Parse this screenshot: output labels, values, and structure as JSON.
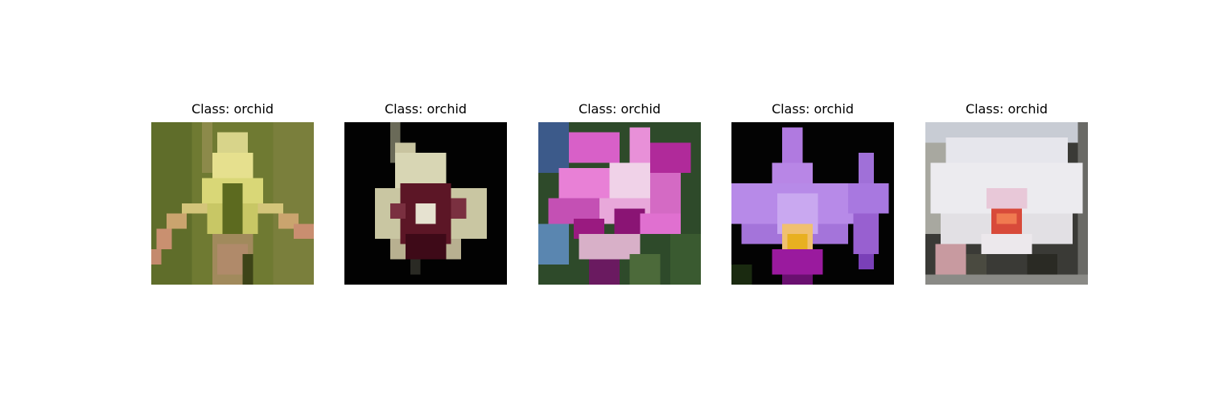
{
  "panels": [
    {
      "title": "Class: orchid",
      "image": "yellow-green-orchid-photo"
    },
    {
      "title": "Class: orchid",
      "image": "white-maroon-orchid-photo"
    },
    {
      "title": "Class: orchid",
      "image": "pink-orchid-cluster-photo"
    },
    {
      "title": "Class: orchid",
      "image": "purple-orchid-photo"
    },
    {
      "title": "Class: orchid",
      "image": "white-orchid-photo"
    }
  ]
}
